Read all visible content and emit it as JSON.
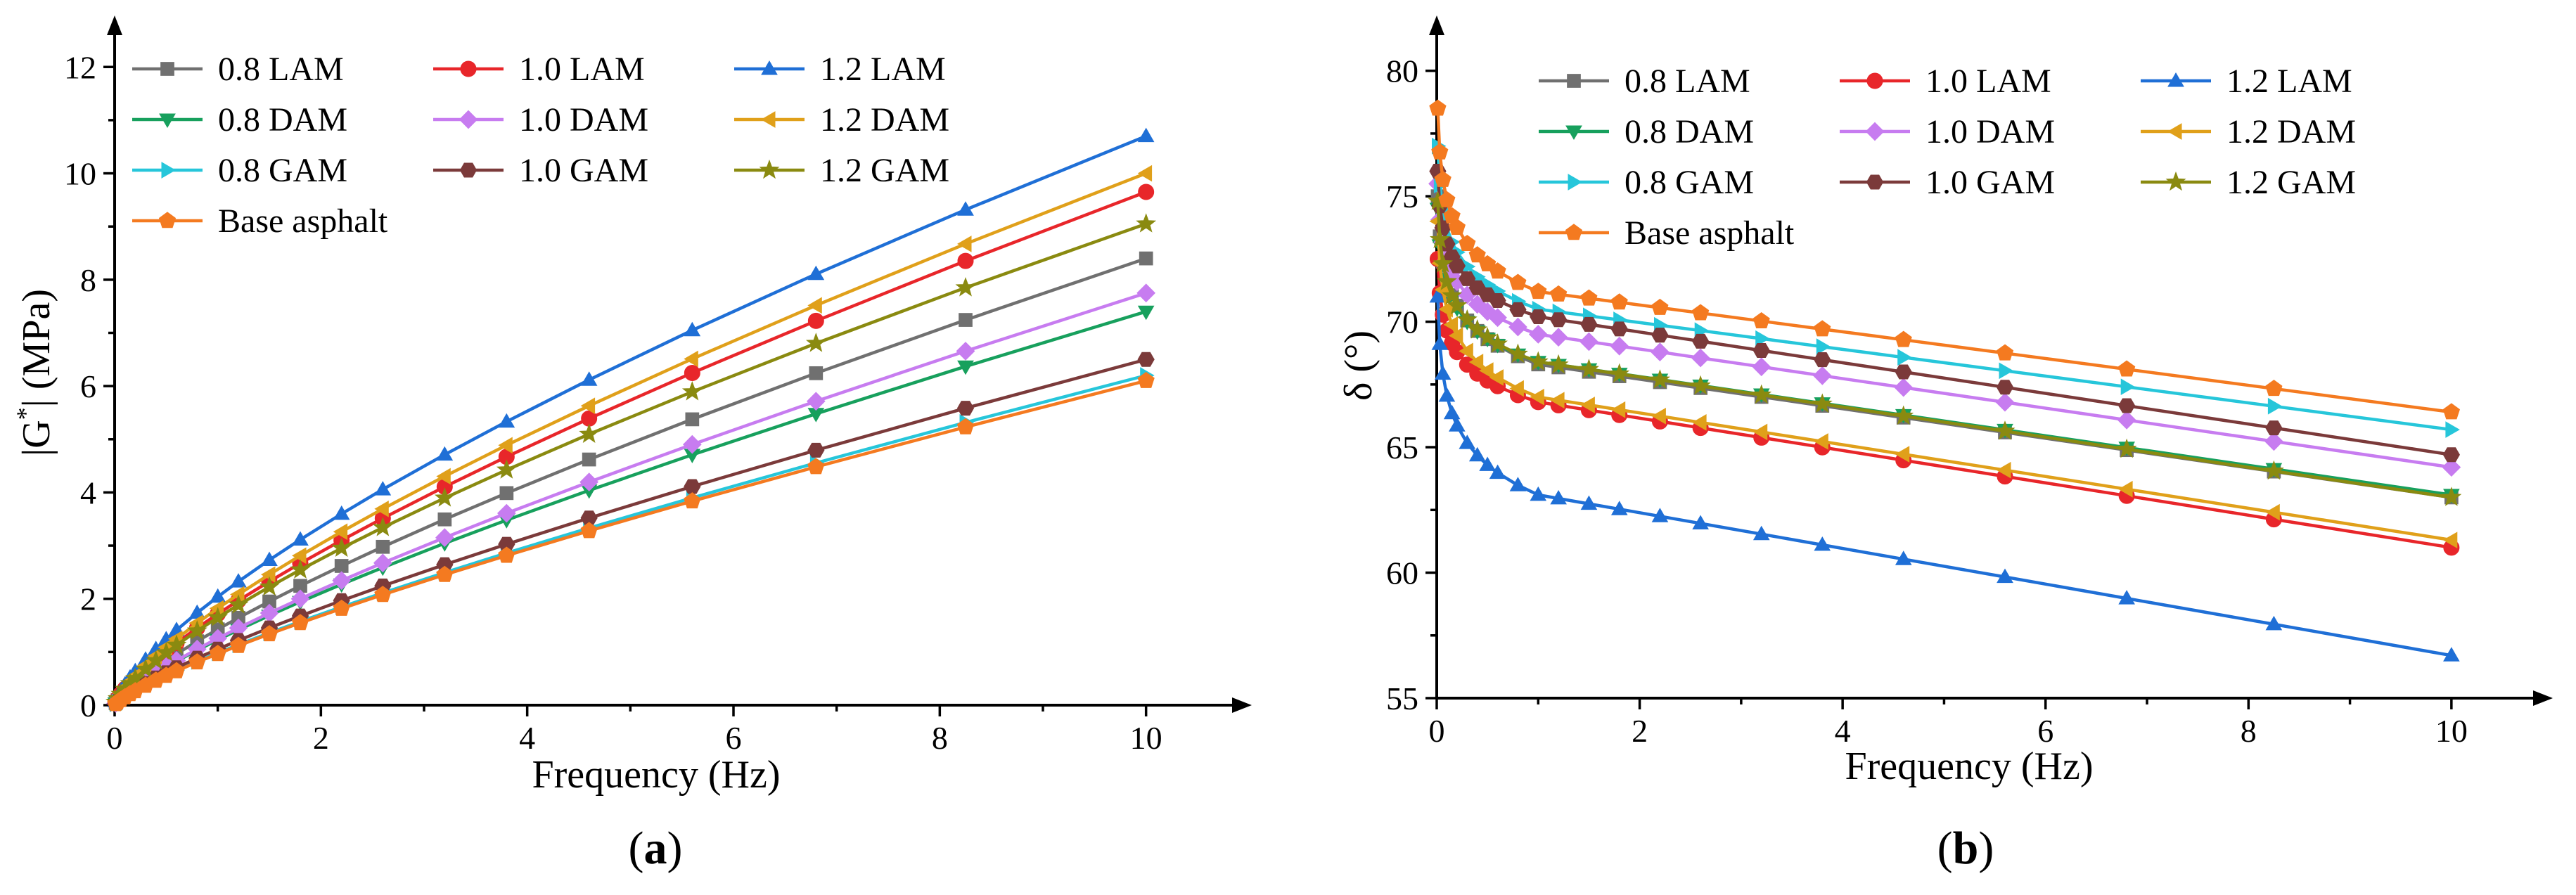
{
  "chart_data": [
    {
      "type": "line",
      "panel": "a",
      "panel_label_parts": [
        "(",
        "a",
        ")"
      ],
      "xlabel": "Frequency (Hz)",
      "ylabel_parts": [
        "|G",
        "*",
        "| (MPa)"
      ],
      "xlim": [
        0,
        10.5
      ],
      "ylim": [
        0,
        12.4
      ],
      "xticks": [
        0,
        2,
        4,
        6,
        8,
        10
      ],
      "yticks": [
        0,
        2,
        4,
        6,
        8,
        10,
        12
      ],
      "x": [
        0.01,
        0.03,
        0.06,
        0.1,
        0.15,
        0.2,
        0.3,
        0.4,
        0.5,
        0.6,
        0.8,
        1.0,
        1.2,
        1.5,
        1.8,
        2.2,
        2.6,
        3.2,
        3.8,
        4.6,
        5.6,
        6.8,
        8.25,
        10.0
      ],
      "legend_position": "top-left",
      "series": [
        {
          "name": "0.8 LAM",
          "color": "#707070",
          "marker": "square",
          "end": 8.4,
          "exp": 0.77
        },
        {
          "name": "1.0 LAM",
          "color": "#e8262a",
          "marker": "circle",
          "end": 9.65,
          "exp": 0.75
        },
        {
          "name": "1.2 LAM",
          "color": "#1f6fd6",
          "marker": "triangle-up",
          "end": 10.7,
          "exp": 0.72
        },
        {
          "name": "0.8 DAM",
          "color": "#17a05d",
          "marker": "triangle-down",
          "end": 7.4,
          "exp": 0.78
        },
        {
          "name": "1.0 DAM",
          "color": "#c77cf0",
          "marker": "diamond",
          "end": 7.75,
          "exp": 0.79
        },
        {
          "name": "1.2 DAM",
          "color": "#e0a01a",
          "marker": "triangle-left",
          "end": 10.0,
          "exp": 0.74
        },
        {
          "name": "0.8 GAM",
          "color": "#26c6da",
          "marker": "triangle-right",
          "end": 6.2,
          "exp": 0.8
        },
        {
          "name": "1.0 GAM",
          "color": "#7b3a3a",
          "marker": "hexagon",
          "end": 6.5,
          "exp": 0.79
        },
        {
          "name": "1.2 GAM",
          "color": "#8a8a10",
          "marker": "star",
          "end": 9.05,
          "exp": 0.74
        },
        {
          "name": "Base asphalt",
          "color": "#f47a20",
          "marker": "pentagon",
          "end": 6.1,
          "exp": 0.8
        }
      ]
    },
    {
      "type": "line",
      "panel": "b",
      "panel_label_parts": [
        "(",
        "b",
        ")"
      ],
      "xlabel": "Frequency (Hz)",
      "ylabel": "δ (°)",
      "xlim": [
        0,
        10.5
      ],
      "ylim": [
        55,
        81
      ],
      "xticks": [
        0,
        2,
        4,
        6,
        8,
        10
      ],
      "yticks": [
        55,
        60,
        65,
        70,
        75,
        80
      ],
      "x": [
        0.01,
        0.03,
        0.06,
        0.1,
        0.15,
        0.2,
        0.3,
        0.4,
        0.5,
        0.6,
        0.8,
        1.0,
        1.2,
        1.5,
        1.8,
        2.2,
        2.6,
        3.2,
        3.8,
        4.6,
        5.6,
        6.8,
        8.25,
        10.0
      ],
      "legend_position": "top-right",
      "series": [
        {
          "name": "0.8 LAM",
          "color": "#707070",
          "marker": "square",
          "start": 75.0,
          "mid": 68.3,
          "end": 63.0
        },
        {
          "name": "1.0 LAM",
          "color": "#e8262a",
          "marker": "circle",
          "start": 72.5,
          "mid": 66.8,
          "end": 61.0
        },
        {
          "name": "1.2 LAM",
          "color": "#1f6fd6",
          "marker": "triangle-up",
          "start": 71.0,
          "mid": 63.1,
          "end": 56.7
        },
        {
          "name": "0.8 DAM",
          "color": "#17a05d",
          "marker": "triangle-down",
          "start": 74.5,
          "mid": 68.4,
          "end": 63.1
        },
        {
          "name": "1.0 DAM",
          "color": "#c77cf0",
          "marker": "diamond",
          "start": 75.5,
          "mid": 69.5,
          "end": 64.2
        },
        {
          "name": "1.2 DAM",
          "color": "#e0a01a",
          "marker": "triangle-left",
          "start": 74.0,
          "mid": 67.0,
          "end": 61.3
        },
        {
          "name": "0.8 GAM",
          "color": "#26c6da",
          "marker": "triangle-right",
          "start": 77.0,
          "mid": 70.5,
          "end": 65.7
        },
        {
          "name": "1.0 GAM",
          "color": "#7b3a3a",
          "marker": "hexagon",
          "start": 76.0,
          "mid": 70.2,
          "end": 64.7
        },
        {
          "name": "1.2 GAM",
          "color": "#8a8a10",
          "marker": "star",
          "start": 74.8,
          "mid": 68.4,
          "end": 63.0
        },
        {
          "name": "Base asphalt",
          "color": "#f47a20",
          "marker": "pentagon",
          "start": 78.5,
          "mid": 71.2,
          "end": 66.4
        }
      ]
    }
  ]
}
